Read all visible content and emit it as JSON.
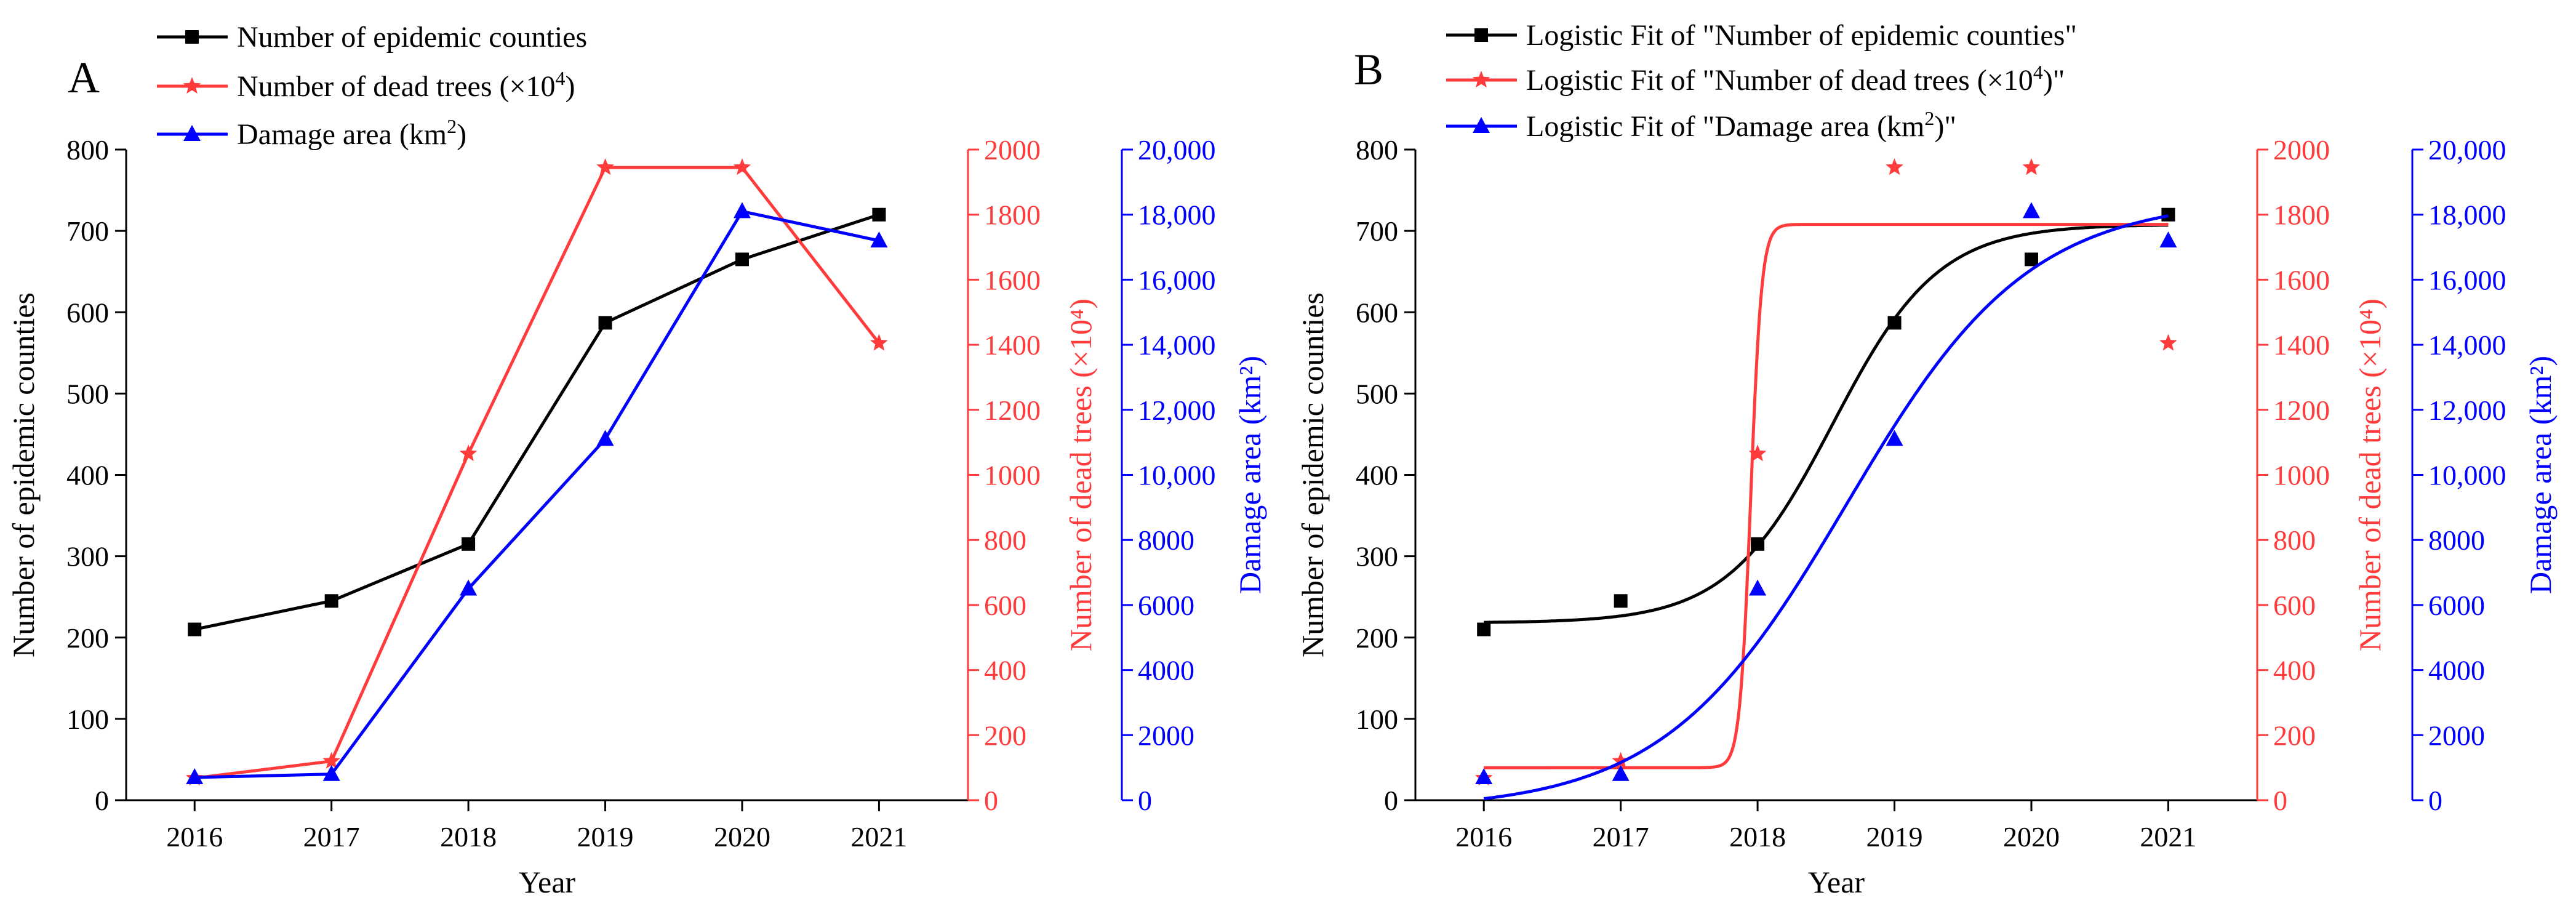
{
  "colors": {
    "black": "#000000",
    "red": "#ff3b3b",
    "blue": "#0000ff"
  },
  "chart_data": [
    {
      "panel_label": "A",
      "type": "line",
      "x": [
        2016,
        2017,
        2018,
        2019,
        2020,
        2021
      ],
      "x_ticks": [
        "2016",
        "2017",
        "2018",
        "2019",
        "2020",
        "2021"
      ],
      "xlabel": "Year",
      "xlim": [
        2015.5,
        2021.65
      ],
      "axes": {
        "left": {
          "label": "Number of epidemic counties",
          "ylim": [
            0,
            800
          ],
          "ticks": [
            0,
            100,
            200,
            300,
            400,
            500,
            600,
            700,
            800
          ],
          "tick_labels": [
            "0",
            "100",
            "200",
            "300",
            "400",
            "500",
            "600",
            "700",
            "800"
          ]
        },
        "right1": {
          "label": "Number of dead trees (×10⁴)",
          "ylim": [
            0,
            2000
          ],
          "ticks": [
            0,
            200,
            400,
            600,
            800,
            1000,
            1200,
            1400,
            1600,
            1800,
            2000
          ],
          "tick_labels": [
            "0",
            "200",
            "400",
            "600",
            "800",
            "1000",
            "1200",
            "1400",
            "1600",
            "1800",
            "2000"
          ]
        },
        "right2": {
          "label": "Damage area (km²)",
          "ylim": [
            0,
            20000
          ],
          "ticks": [
            0,
            2000,
            4000,
            6000,
            8000,
            10000,
            12000,
            14000,
            16000,
            18000,
            20000
          ],
          "tick_labels": [
            "0",
            "2000",
            "4000",
            "6000",
            "8000",
            "10,000",
            "12,000",
            "14,000",
            "16,000",
            "18,000",
            "20,000"
          ]
        }
      },
      "series": [
        {
          "name": "Number of epidemic counties",
          "axis": "left",
          "marker": "square",
          "color": "#000000",
          "values": [
            210,
            245,
            315,
            587,
            665,
            720
          ],
          "style": "line"
        },
        {
          "name": "Number of dead trees (×10⁴)",
          "axis": "right1",
          "marker": "star",
          "color": "#ff3b3b",
          "values": [
            68,
            120,
            1065,
            1945,
            1945,
            1405
          ],
          "style": "line"
        },
        {
          "name": "Damage area (km²)",
          "axis": "right2",
          "marker": "triangle",
          "color": "#0000ff",
          "values": [
            700,
            800,
            6500,
            11100,
            18100,
            17200
          ],
          "style": "line"
        }
      ],
      "legend": [
        {
          "name": "Number of epidemic counties"
        },
        {
          "name": "Number of dead trees (×10",
          "sup": "4",
          "after": ")"
        },
        {
          "name": "Damage area (km",
          "sup": "2",
          "after": ")"
        }
      ],
      "legend_position": "top-left"
    },
    {
      "panel_label": "B",
      "type": "scatter",
      "x": [
        2016,
        2017,
        2018,
        2019,
        2020,
        2021
      ],
      "x_ticks": [
        "2016",
        "2017",
        "2018",
        "2019",
        "2020",
        "2021"
      ],
      "xlabel": "Year",
      "xlim": [
        2015.5,
        2021.65
      ],
      "axes": {
        "left": {
          "label": "Number of epidemic counties",
          "ylim": [
            0,
            800
          ],
          "ticks": [
            0,
            100,
            200,
            300,
            400,
            500,
            600,
            700,
            800
          ],
          "tick_labels": [
            "0",
            "100",
            "200",
            "300",
            "400",
            "500",
            "600",
            "700",
            "800"
          ]
        },
        "right1": {
          "label": "Number of dead trees (×10⁴)",
          "ylim": [
            0,
            2000
          ],
          "ticks": [
            0,
            200,
            400,
            600,
            800,
            1000,
            1200,
            1400,
            1600,
            1800,
            2000
          ],
          "tick_labels": [
            "0",
            "200",
            "400",
            "600",
            "800",
            "1000",
            "1200",
            "1400",
            "1600",
            "1800",
            "2000"
          ]
        },
        "right2": {
          "label": "Damage area (km²)",
          "ylim": [
            0,
            20000
          ],
          "ticks": [
            0,
            2000,
            4000,
            6000,
            8000,
            10000,
            12000,
            14000,
            16000,
            18000,
            20000
          ],
          "tick_labels": [
            "0",
            "2000",
            "4000",
            "6000",
            "8000",
            "10,000",
            "12,000",
            "14,000",
            "16,000",
            "18,000",
            "20,000"
          ]
        }
      },
      "series": [
        {
          "name": "Logistic Fit of \"Number of epidemic counties\"",
          "axis": "left",
          "marker": "square",
          "color": "#000000",
          "values": [
            210,
            245,
            315,
            587,
            665,
            720
          ],
          "fit": {
            "A1": 218,
            "A2": 708,
            "x0": 2018.55,
            "k": 2.6
          }
        },
        {
          "name": "Logistic Fit of \"Number of dead trees (×10⁴)\"",
          "axis": "right1",
          "marker": "star",
          "color": "#ff3b3b",
          "values": [
            68,
            120,
            1065,
            1945,
            1945,
            1405
          ],
          "fit": {
            "A1": 100,
            "A2": 1770,
            "x0": 2017.95,
            "k": 25
          }
        },
        {
          "name": "Logistic Fit of \"Damage area (km²)\"",
          "axis": "right2",
          "marker": "triangle",
          "color": "#0000ff",
          "values": [
            700,
            800,
            6500,
            11100,
            18100,
            17200
          ],
          "fit": {
            "A1": -300,
            "A2": 18500,
            "x0": 2018.65,
            "k": 1.5
          }
        }
      ],
      "legend": [
        {
          "name": "Logistic Fit of \"Number of epidemic counties\""
        },
        {
          "name": "Logistic Fit of \"Number of dead trees (×10",
          "sup": "4",
          "after": ")\""
        },
        {
          "name": "Logistic Fit of \"Damage area (km",
          "sup": "2",
          "after": ")\""
        }
      ],
      "legend_position": "top-left"
    }
  ]
}
